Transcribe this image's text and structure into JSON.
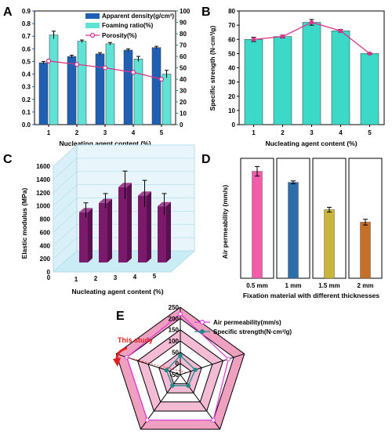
{
  "panels": {
    "A": "A",
    "B": "B",
    "C": "C",
    "D": "D",
    "E": "E"
  },
  "colors": {
    "density": "#1f5fb4",
    "foaming": "#5fe3d6",
    "porosity": "#d9348a",
    "strength_bar": "#3dd9c8",
    "elastic": "#7b1a6b",
    "d_colors": [
      "#f25ca9",
      "#2c6fa8",
      "#c9b53a",
      "#c56f2a"
    ],
    "radar_fill": "#ef9fc0"
  },
  "chart_data": [
    {
      "panel": "A",
      "type": "bar",
      "categories": [
        "1",
        "2",
        "3",
        "4",
        "5"
      ],
      "xlabel": "Nucleating agent content (%)",
      "ylim_left": [
        0.0,
        0.9
      ],
      "yticks_left": [
        "0.0",
        "0.1",
        "0.2",
        "0.3",
        "0.4",
        "0.5",
        "0.6",
        "0.7",
        "0.8",
        "0.9"
      ],
      "ylim_right": [
        0,
        100
      ],
      "yticks_right": [
        "0",
        "10",
        "20",
        "30",
        "40",
        "50",
        "60",
        "70",
        "80",
        "90",
        "100"
      ],
      "series": [
        {
          "name": "Apparent density(g/cm³)",
          "axis": "left",
          "values": [
            0.49,
            0.54,
            0.56,
            0.59,
            0.61
          ],
          "errors": [
            0.01,
            0.01,
            0.01,
            0.01,
            0.01
          ]
        },
        {
          "name": "Foaming ratio(%)",
          "axis": "left",
          "values": [
            0.71,
            0.66,
            0.64,
            0.52,
            0.4
          ],
          "errors": [
            0.03,
            0.01,
            0.01,
            0.02,
            0.03
          ]
        },
        {
          "name": "Porosity(%)",
          "axis": "right",
          "type": "line",
          "values": [
            56,
            53,
            50,
            46,
            40
          ]
        }
      ],
      "legend_position": "top-right"
    },
    {
      "panel": "B",
      "type": "bar",
      "categories": [
        "1",
        "2",
        "3",
        "4",
        "5"
      ],
      "xlabel": "Nucleating agent content (%)",
      "ylabel": "Specific strength (N·cm³/g)",
      "ylim": [
        0,
        80
      ],
      "yticks": [
        "0",
        "10",
        "20",
        "30",
        "40",
        "50",
        "60",
        "70",
        "80"
      ],
      "values": [
        60,
        62,
        72,
        66,
        50
      ],
      "errors": [
        1.5,
        1.0,
        2.0,
        1.0,
        0.5
      ],
      "line_overlay": true
    },
    {
      "panel": "C",
      "type": "bar",
      "subtype": "3d",
      "categories": [
        "1",
        "2",
        "3",
        "4",
        "5"
      ],
      "xlabel": "Nucleating agent content (%)",
      "ylabel": "Elastic modulus (MPa)",
      "ylim": [
        0,
        1600
      ],
      "yticks": [
        "0",
        "200",
        "400",
        "600",
        "800",
        "1000",
        "1200",
        "1400",
        "1600"
      ],
      "values": [
        760,
        900,
        1140,
        1010,
        850
      ],
      "errors": [
        110,
        110,
        210,
        200,
        160
      ]
    },
    {
      "panel": "D",
      "type": "bar",
      "categories": [
        "0.5 mm",
        "1 mm",
        "1.5 mm",
        "2 mm"
      ],
      "xlabel": "Fixation material with different thicknesses",
      "ylabel": "Air permeability (mm/s)",
      "ylim": [
        0,
        250
      ],
      "values": [
        223,
        200,
        143,
        117
      ],
      "errors": [
        10,
        3,
        5,
        6
      ]
    },
    {
      "panel": "E",
      "type": "radar",
      "rticks": [
        "-50",
        "0",
        "50",
        "100",
        "150",
        "200",
        "250"
      ],
      "rlim": [
        -50,
        250
      ],
      "series": [
        {
          "name": "Air permeability(mm/s)",
          "values": [
            220,
            175,
            200,
            200,
            200
          ]
        },
        {
          "name": "Specific strength(N·cm³/g)",
          "values": [
            35,
            20,
            10,
            10,
            15
          ]
        }
      ],
      "annotation": "This study"
    }
  ]
}
